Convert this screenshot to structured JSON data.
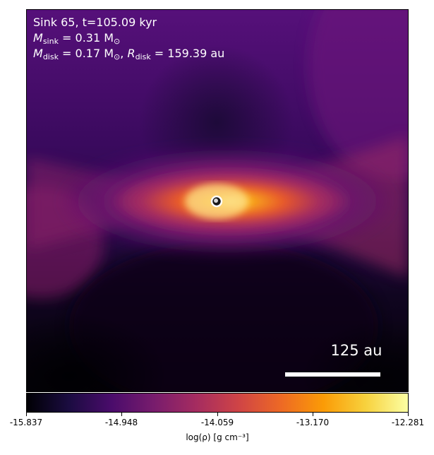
{
  "annotations": {
    "line1": "Sink 65, t=105.09 kyr",
    "line2_symbol": "M",
    "line2_sub": "sink",
    "line2_rest": " = 0.31 M",
    "line2_sun": "⊙",
    "line3_symbol": "M",
    "line3_sub": "disk",
    "line3_rest": " = 0.17 M",
    "line3_sun": "⊙",
    "line3_sep": ", ",
    "line3_symbol2": "R",
    "line3_sub2": "disk",
    "line3_rest2": " = 159.39 au"
  },
  "scale_bar": {
    "label": "125 au"
  },
  "colorbar": {
    "ticks": [
      "-15.837",
      "-14.948",
      "-14.059",
      "-13.170",
      "-12.281"
    ],
    "label": "log(ρ) [g cm⁻³]",
    "colormap": "inferno"
  }
}
